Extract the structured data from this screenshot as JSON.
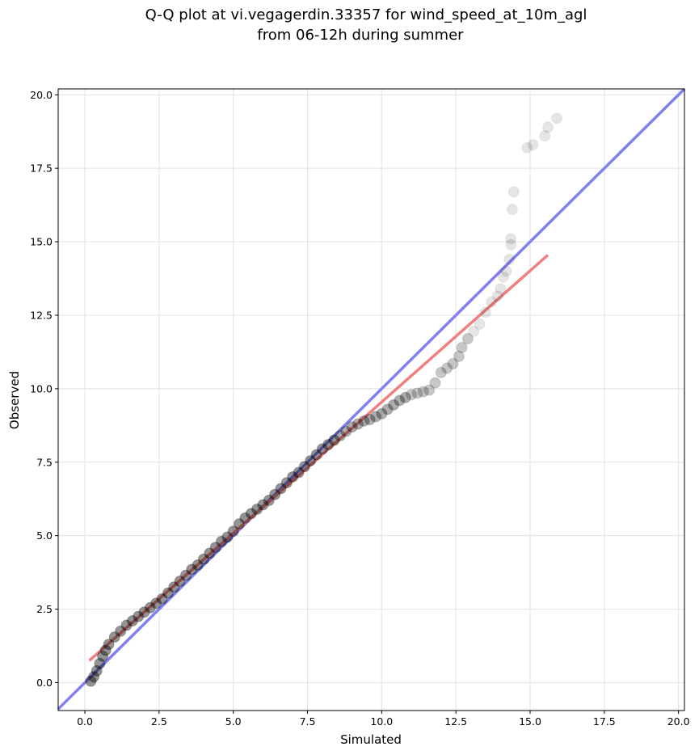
{
  "chart_data": {
    "type": "scatter",
    "title_line1": "Q-Q plot at vi.vegagerdin.33357 for wind_speed_at_10m_agl",
    "title_line2": "from 06-12h during summer",
    "xlabel": "Simulated",
    "ylabel": "Observed",
    "xlim": [
      -0.9,
      20.2
    ],
    "ylim": [
      -0.95,
      20.2
    ],
    "xticks": [
      0.0,
      2.5,
      5.0,
      7.5,
      10.0,
      12.5,
      15.0,
      17.5,
      20.0
    ],
    "yticks": [
      0.0,
      2.5,
      5.0,
      7.5,
      10.0,
      12.5,
      15.0,
      17.5,
      20.0
    ],
    "tick_labels_x": [
      "0.0",
      "2.5",
      "5.0",
      "7.5",
      "10.0",
      "12.5",
      "15.0",
      "17.5",
      "20.0"
    ],
    "tick_labels_y": [
      "0.0",
      "2.5",
      "5.0",
      "7.5",
      "10.0",
      "12.5",
      "15.0",
      "17.5",
      "20.0"
    ],
    "grid": true,
    "identity_line": {
      "color": "#8080ef",
      "from": [
        -0.9,
        -0.9
      ],
      "to": [
        20.2,
        20.2
      ]
    },
    "fit_line": {
      "color": "#f08080",
      "from": [
        0.15,
        0.75
      ],
      "to": [
        15.6,
        14.55
      ]
    },
    "marker_color": "#000000",
    "quantiles": [
      {
        "x": 0.2,
        "y": 0.05
      },
      {
        "x": 0.3,
        "y": 0.2
      },
      {
        "x": 0.4,
        "y": 0.4
      },
      {
        "x": 0.5,
        "y": 0.65
      },
      {
        "x": 0.6,
        "y": 0.9
      },
      {
        "x": 0.7,
        "y": 1.1
      },
      {
        "x": 0.8,
        "y": 1.3
      },
      {
        "x": 1.0,
        "y": 1.55
      },
      {
        "x": 1.2,
        "y": 1.75
      },
      {
        "x": 1.4,
        "y": 1.95
      },
      {
        "x": 1.6,
        "y": 2.1
      },
      {
        "x": 1.8,
        "y": 2.25
      },
      {
        "x": 2.0,
        "y": 2.4
      },
      {
        "x": 2.2,
        "y": 2.55
      },
      {
        "x": 2.4,
        "y": 2.7
      },
      {
        "x": 2.6,
        "y": 2.85
      },
      {
        "x": 2.8,
        "y": 3.05
      },
      {
        "x": 3.0,
        "y": 3.25
      },
      {
        "x": 3.2,
        "y": 3.45
      },
      {
        "x": 3.4,
        "y": 3.65
      },
      {
        "x": 3.6,
        "y": 3.85
      },
      {
        "x": 3.8,
        "y": 4.0
      },
      {
        "x": 4.0,
        "y": 4.2
      },
      {
        "x": 4.2,
        "y": 4.4
      },
      {
        "x": 4.4,
        "y": 4.6
      },
      {
        "x": 4.6,
        "y": 4.8
      },
      {
        "x": 4.8,
        "y": 4.95
      },
      {
        "x": 5.0,
        "y": 5.15
      },
      {
        "x": 5.2,
        "y": 5.4
      },
      {
        "x": 5.4,
        "y": 5.6
      },
      {
        "x": 5.6,
        "y": 5.75
      },
      {
        "x": 5.8,
        "y": 5.9
      },
      {
        "x": 6.0,
        "y": 6.05
      },
      {
        "x": 6.2,
        "y": 6.2
      },
      {
        "x": 6.4,
        "y": 6.4
      },
      {
        "x": 6.6,
        "y": 6.6
      },
      {
        "x": 6.8,
        "y": 6.8
      },
      {
        "x": 7.0,
        "y": 7.0
      },
      {
        "x": 7.2,
        "y": 7.15
      },
      {
        "x": 7.4,
        "y": 7.35
      },
      {
        "x": 7.6,
        "y": 7.55
      },
      {
        "x": 7.8,
        "y": 7.75
      },
      {
        "x": 8.0,
        "y": 7.95
      },
      {
        "x": 8.2,
        "y": 8.1
      },
      {
        "x": 8.4,
        "y": 8.25
      },
      {
        "x": 8.6,
        "y": 8.4
      },
      {
        "x": 8.8,
        "y": 8.55
      },
      {
        "x": 9.0,
        "y": 8.7
      },
      {
        "x": 9.2,
        "y": 8.8
      },
      {
        "x": 9.4,
        "y": 8.9
      },
      {
        "x": 9.6,
        "y": 8.95
      },
      {
        "x": 9.8,
        "y": 9.05
      },
      {
        "x": 10.0,
        "y": 9.15
      },
      {
        "x": 10.2,
        "y": 9.3
      },
      {
        "x": 10.4,
        "y": 9.45
      },
      {
        "x": 10.6,
        "y": 9.6
      },
      {
        "x": 10.8,
        "y": 9.7
      },
      {
        "x": 11.0,
        "y": 9.8
      },
      {
        "x": 11.2,
        "y": 9.85
      },
      {
        "x": 11.4,
        "y": 9.9
      },
      {
        "x": 11.6,
        "y": 9.95
      },
      {
        "x": 11.8,
        "y": 10.2
      },
      {
        "x": 12.0,
        "y": 10.55
      },
      {
        "x": 12.2,
        "y": 10.7
      },
      {
        "x": 12.4,
        "y": 10.85
      },
      {
        "x": 12.6,
        "y": 11.1
      },
      {
        "x": 12.7,
        "y": 11.4
      },
      {
        "x": 12.9,
        "y": 11.7
      },
      {
        "x": 13.1,
        "y": 11.95
      },
      {
        "x": 13.3,
        "y": 12.2
      },
      {
        "x": 13.5,
        "y": 12.6
      },
      {
        "x": 13.7,
        "y": 12.95
      },
      {
        "x": 13.9,
        "y": 13.15
      },
      {
        "x": 14.0,
        "y": 13.4
      },
      {
        "x": 14.1,
        "y": 13.8
      },
      {
        "x": 14.2,
        "y": 14.0
      },
      {
        "x": 14.3,
        "y": 14.4
      },
      {
        "x": 14.35,
        "y": 14.9
      },
      {
        "x": 14.35,
        "y": 15.1
      },
      {
        "x": 14.4,
        "y": 16.1
      },
      {
        "x": 14.45,
        "y": 16.7
      },
      {
        "x": 14.9,
        "y": 18.2
      },
      {
        "x": 15.1,
        "y": 18.3
      },
      {
        "x": 15.5,
        "y": 18.6
      },
      {
        "x": 15.6,
        "y": 18.9
      },
      {
        "x": 15.9,
        "y": 19.2
      }
    ]
  }
}
